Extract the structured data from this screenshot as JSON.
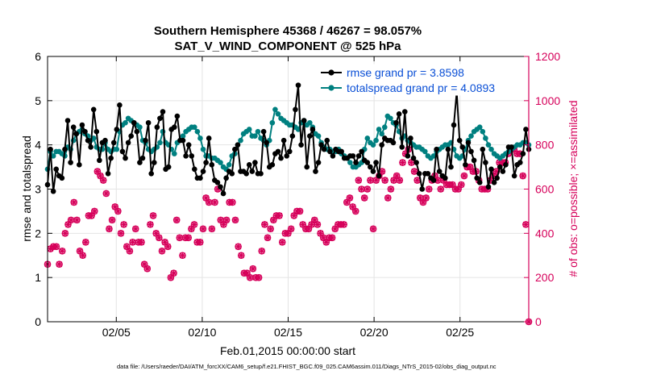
{
  "chart_data": {
    "type": "line",
    "title": [
      "Southern Hemisphere 45368 / 46267 = 98.057%",
      "SAT_V_WIND_COMPONENT @ 525 hPa"
    ],
    "xlabel": "Feb.01,2015 00:00:00 start",
    "ylabel": "rmse and totalspread",
    "ylabel_right": "# of obs: o=possible; ×=assimilated",
    "x_unit": "day of Feb 2015",
    "xlim": [
      1,
      29
    ],
    "ylim": [
      0,
      6
    ],
    "ylim_right": [
      0,
      1200
    ],
    "xticks": [
      5,
      10,
      15,
      20,
      25
    ],
    "xtick_labels": [
      "02/05",
      "02/10",
      "02/15",
      "02/20",
      "02/25"
    ],
    "yticks": [
      0,
      1,
      2,
      3,
      4,
      5,
      6
    ],
    "yticks_right": [
      0,
      200,
      400,
      600,
      800,
      1000,
      1200
    ],
    "grid": true,
    "legend_position": "top-right",
    "colors": {
      "rmse": "#000000",
      "spread": "#008080",
      "obs": "#d6005a",
      "right_axis": "#d6005a",
      "legend_text": "#0a4fd6"
    },
    "series": [
      {
        "name": "rmse grand pr = 3.8598",
        "axis": "left",
        "values": [
          3.1,
          3.9,
          2.95,
          3.45,
          3.3,
          3.25,
          3.9,
          4.55,
          3.6,
          4.4,
          4.25,
          3.55,
          4.45,
          4.3,
          4.1,
          3.95,
          4.8,
          4.3,
          3.65,
          4.05,
          4.1,
          3.35,
          3.7,
          4.05,
          4.35,
          4.9,
          3.85,
          3.7,
          4.05,
          4.2,
          4.5,
          4.3,
          3.6,
          3.7,
          4.1,
          4.5,
          3.35,
          3.6,
          4.4,
          4.6,
          4.75,
          3.45,
          3.5,
          4.35,
          4.4,
          4.65,
          4.1,
          4.1,
          3.75,
          4.0,
          3.75,
          3.45,
          3.25,
          3.25,
          3.4,
          3.6,
          4.15,
          3.55,
          3.2,
          3.15,
          3.05,
          2.9,
          3.25,
          3.4,
          3.35,
          3.9,
          4.0,
          3.4,
          3.4,
          3.35,
          3.55,
          3.4,
          3.6,
          3.35,
          3.35,
          4.3,
          4.05,
          3.5,
          3.55,
          3.8,
          3.85,
          3.7,
          4.1,
          3.75,
          3.85,
          4.2,
          4.8,
          5.35,
          4.0,
          4.55,
          3.5,
          4.2,
          4.35,
          3.4,
          3.6,
          4.0,
          3.9,
          4.1,
          3.85,
          3.75,
          3.9,
          3.85,
          3.85,
          3.7,
          3.7,
          3.75,
          3.75,
          3.6,
          3.75,
          3.85,
          3.65,
          3.6,
          3.5,
          3.4,
          3.6,
          3.3,
          4.0,
          4.15,
          4.1,
          4.1,
          4.05,
          4.5,
          4.7,
          3.95,
          4.75,
          3.75,
          4.15,
          3.7,
          3.6,
          3.35,
          3.0,
          3.35,
          3.35,
          3.25,
          3.2,
          3.9,
          3.4,
          3.3,
          3.25,
          3.9,
          3.5,
          4.45,
          5.2,
          4.1,
          3.95,
          3.55,
          4.05,
          3.85,
          3.65,
          3.25,
          3.15,
          3.9,
          3.6,
          3.05,
          3.45,
          3.15,
          3.25,
          3.5,
          3.4,
          3.55,
          3.95,
          3.95,
          3.3,
          3.55,
          3.6,
          3.8,
          4.35,
          3.9
        ]
      },
      {
        "name": "totalspread grand pr = 4.0893",
        "axis": "left",
        "values": [
          3.45,
          3.85,
          3.75,
          3.85,
          3.85,
          3.8,
          3.75,
          3.95,
          3.9,
          4.1,
          4.25,
          4.3,
          4.35,
          4.25,
          4.2,
          4.1,
          4.15,
          3.95,
          3.9,
          3.9,
          4.05,
          3.9,
          3.85,
          3.9,
          3.9,
          4.3,
          4.45,
          4.5,
          4.6,
          4.55,
          4.5,
          4.45,
          4.4,
          4.1,
          4.05,
          3.9,
          3.85,
          3.9,
          3.95,
          4.05,
          4.3,
          4.05,
          4.0,
          3.9,
          3.8,
          4.05,
          4.1,
          4.2,
          4.3,
          4.35,
          4.4,
          4.4,
          4.3,
          4.15,
          3.9,
          3.75,
          3.75,
          3.7,
          3.7,
          3.65,
          3.6,
          3.5,
          3.45,
          3.55,
          3.75,
          3.8,
          4.0,
          4.1,
          4.25,
          4.3,
          4.35,
          4.2,
          4.2,
          4.3,
          4.15,
          4.1,
          4.0,
          4.1,
          4.5,
          4.8,
          4.7,
          4.6,
          4.55,
          4.5,
          4.45,
          4.45,
          4.4,
          4.35,
          4.5,
          4.55,
          4.45,
          4.5,
          4.4,
          4.25,
          4.2,
          4.05,
          3.95,
          3.9,
          3.9,
          3.85,
          3.85,
          3.9,
          3.8,
          3.75,
          3.7,
          3.6,
          3.5,
          3.5,
          3.55,
          3.6,
          3.9,
          4.15,
          4.05,
          4.0,
          4.1,
          4.35,
          4.25,
          4.4,
          4.65,
          4.6,
          4.5,
          4.45,
          4.3,
          4.15,
          4.2,
          4.1,
          4.05,
          4.0,
          3.95,
          3.95,
          3.9,
          3.85,
          3.75,
          3.7,
          3.75,
          3.85,
          3.9,
          3.95,
          4.0,
          4.0,
          4.05,
          3.9,
          3.75,
          3.7,
          3.75,
          3.9,
          4.1,
          4.2,
          4.3,
          4.35,
          4.4,
          4.3,
          4.15,
          4.0,
          3.9,
          3.8,
          3.75,
          3.7,
          3.75,
          3.8,
          3.85,
          3.9,
          3.95,
          4.0,
          4.0,
          4.05,
          4.05,
          4.0
        ]
      },
      {
        "name": "obs assimilated",
        "axis": "right",
        "values": [
          260,
          330,
          340,
          340,
          260,
          320,
          400,
          440,
          460,
          540,
          460,
          320,
          300,
          360,
          480,
          480,
          500,
          680,
          660,
          640,
          580,
          420,
          460,
          520,
          500,
          400,
          440,
          340,
          320,
          360,
          420,
          360,
          360,
          260,
          240,
          440,
          480,
          400,
          380,
          320,
          360,
          340,
          200,
          220,
          460,
          380,
          300,
          380,
          380,
          420,
          440,
          360,
          360,
          420,
          560,
          540,
          420,
          540,
          600,
          460,
          440,
          460,
          540,
          540,
          460,
          340,
          300,
          220,
          220,
          200,
          240,
          200,
          200,
          320,
          440,
          380,
          420,
          460,
          480,
          480,
          360,
          400,
          400,
          420,
          480,
          500,
          500,
          440,
          420,
          420,
          440,
          460,
          440,
          400,
          380,
          360,
          380,
          380,
          420,
          440,
          440,
          440,
          540,
          560,
          520,
          500,
          640,
          600,
          560,
          600,
          640,
          420,
          640,
          660,
          680,
          640,
          560,
          600,
          640,
          660,
          640,
          720,
          760,
          780,
          720,
          680,
          640,
          560,
          540,
          560,
          600,
          640,
          660,
          640,
          600,
          640,
          620,
          620,
          620,
          600,
          600,
          620,
          660,
          700,
          700,
          680,
          680,
          640,
          600,
          600,
          600,
          640,
          660,
          680,
          720,
          720,
          720,
          760,
          780,
          780,
          760,
          760,
          660,
          440,
          0
        ]
      }
    ]
  },
  "footer": "data file: /Users/raeder/DAI/ATM_forcXX/CAM6_setup/f.e21.FHIST_BGC.f09_025.CAM6assim.011/Diags_NTrS_2015-02/obs_diag_output.nc"
}
